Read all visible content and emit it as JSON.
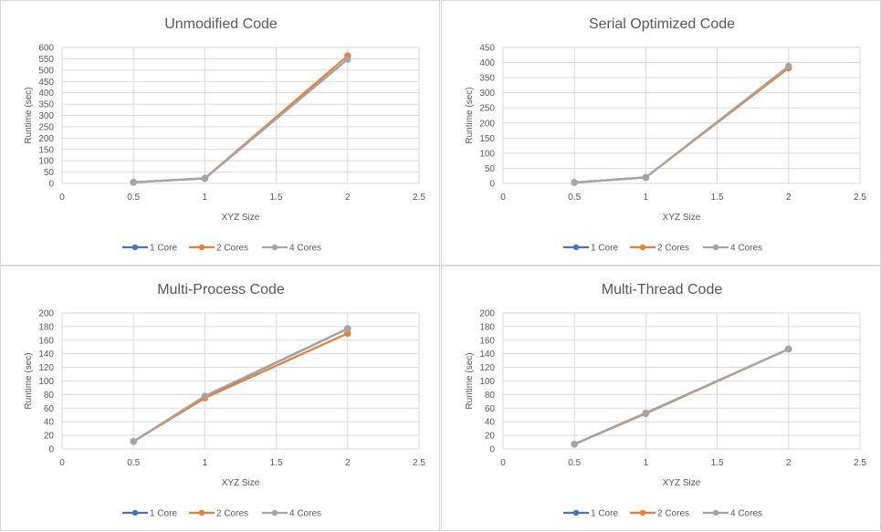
{
  "chart_data": [
    {
      "type": "line",
      "title": "Unmodified Code",
      "xlabel": "XYZ Size",
      "ylabel": "Runtime (sec)",
      "xlim": [
        0,
        2.5
      ],
      "xticks": [
        0,
        0.5,
        1,
        1.5,
        2,
        2.5
      ],
      "ylim": [
        0,
        600
      ],
      "yticks": [
        0,
        50,
        100,
        150,
        200,
        250,
        300,
        350,
        400,
        450,
        500,
        550,
        600
      ],
      "x": [
        0.5,
        1,
        2
      ],
      "series": [
        {
          "name": "1 Core",
          "values": [
            5,
            22,
            548
          ],
          "color": "#4472c4"
        },
        {
          "name": "2 Cores",
          "values": [
            5,
            23,
            563
          ],
          "color": "#ed7d31"
        },
        {
          "name": "4 Cores",
          "values": [
            5,
            23,
            547
          ],
          "color": "#a5a5a5"
        }
      ],
      "legend": "bottom",
      "grid": true
    },
    {
      "type": "line",
      "title": "Serial Optimized Code",
      "xlabel": "XYZ Size",
      "ylabel": "Runtime (sec)",
      "xlim": [
        0,
        2.5
      ],
      "xticks": [
        0,
        0.5,
        1,
        1.5,
        2,
        2.5
      ],
      "ylim": [
        0,
        450
      ],
      "yticks": [
        0,
        50,
        100,
        150,
        200,
        250,
        300,
        350,
        400,
        450
      ],
      "x": [
        0.5,
        1,
        2
      ],
      "series": [
        {
          "name": "1 Core",
          "values": [
            3,
            20,
            385
          ],
          "color": "#4472c4"
        },
        {
          "name": "2 Cores",
          "values": [
            3,
            20,
            382
          ],
          "color": "#ed7d31"
        },
        {
          "name": "4 Cores",
          "values": [
            3,
            20,
            388
          ],
          "color": "#a5a5a5"
        }
      ],
      "legend": "bottom",
      "grid": true
    },
    {
      "type": "line",
      "title": "Multi-Process Code",
      "xlabel": "XYZ Size",
      "ylabel": "Runtime (sec)",
      "xlim": [
        0,
        2.5
      ],
      "xticks": [
        0,
        0.5,
        1,
        1.5,
        2,
        2.5
      ],
      "ylim": [
        0,
        200
      ],
      "yticks": [
        0,
        20,
        40,
        60,
        80,
        100,
        120,
        140,
        160,
        180,
        200
      ],
      "x": [
        0.5,
        1,
        2
      ],
      "series": [
        {
          "name": "1 Core",
          "values": [
            11,
            77,
            177
          ],
          "color": "#4472c4"
        },
        {
          "name": "2 Cores",
          "values": [
            11,
            75,
            170
          ],
          "color": "#ed7d31"
        },
        {
          "name": "4 Cores",
          "values": [
            11,
            78,
            177
          ],
          "color": "#a5a5a5"
        }
      ],
      "legend": "bottom",
      "grid": true
    },
    {
      "type": "line",
      "title": "Multi-Thread Code",
      "xlabel": "XYZ Size",
      "ylabel": "Runtime (sec)",
      "xlim": [
        0,
        2.5
      ],
      "xticks": [
        0,
        0.5,
        1,
        1.5,
        2,
        2.5
      ],
      "ylim": [
        0,
        200
      ],
      "yticks": [
        0,
        20,
        40,
        60,
        80,
        100,
        120,
        140,
        160,
        180,
        200
      ],
      "x": [
        0.5,
        1,
        2
      ],
      "series": [
        {
          "name": "1 Core",
          "values": [
            7,
            53,
            147
          ],
          "color": "#4472c4"
        },
        {
          "name": "2 Cores",
          "values": [
            7,
            52,
            147
          ],
          "color": "#ed7d31"
        },
        {
          "name": "4 Cores",
          "values": [
            7,
            53,
            147
          ],
          "color": "#a5a5a5"
        }
      ],
      "legend": "bottom",
      "grid": true
    }
  ]
}
